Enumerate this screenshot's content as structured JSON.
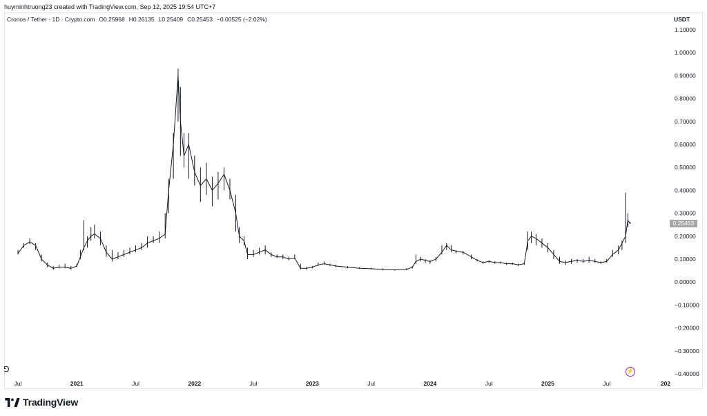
{
  "header": {
    "attribution": "huyminhtruong23 created with TradingView.com, Sep 12, 2025 19:54 UTC+7"
  },
  "legend": {
    "symbol": "Cronos / Tether · 1D · Crypto.com",
    "open": "O0.25968",
    "high": "H0.26135",
    "low": "L0.25409",
    "close": "C0.25453",
    "change": "−0.00525 (−2.02%)"
  },
  "price_label": "0.25453",
  "brand": "TradingView",
  "bolt_icon": "⚡",
  "scroll_icon": "⅁",
  "colors": {
    "candle": "#131722",
    "price_tag": "#a6a6a6",
    "accent": "#9c27b0"
  },
  "chart_data": {
    "type": "line",
    "title": "",
    "unit": "USDT",
    "ylim": [
      -0.4,
      1.1
    ],
    "yticks": [
      "1.10000",
      "1.00000",
      "0.90000",
      "0.80000",
      "0.70000",
      "0.60000",
      "0.50000",
      "0.40000",
      "0.30000",
      "0.20000",
      "0.10000",
      "0.00000",
      "−0.10000",
      "−0.20000",
      "−0.30000",
      "−0.40000"
    ],
    "ytick_values": [
      1.1,
      1.0,
      0.9,
      0.8,
      0.7,
      0.6,
      0.5,
      0.4,
      0.3,
      0.2,
      0.1,
      0.0,
      -0.1,
      -0.2,
      -0.3,
      -0.4
    ],
    "xticks": [
      {
        "label": "Jul",
        "t": 2020.5,
        "bold": false
      },
      {
        "label": "2021",
        "t": 2021.0,
        "bold": true
      },
      {
        "label": "Jul",
        "t": 2021.5,
        "bold": false
      },
      {
        "label": "2022",
        "t": 2022.0,
        "bold": true
      },
      {
        "label": "Jul",
        "t": 2022.5,
        "bold": false
      },
      {
        "label": "2023",
        "t": 2023.0,
        "bold": true
      },
      {
        "label": "Jul",
        "t": 2023.5,
        "bold": false
      },
      {
        "label": "2024",
        "t": 2024.0,
        "bold": true
      },
      {
        "label": "Jul",
        "t": 2024.5,
        "bold": false
      },
      {
        "label": "2025",
        "t": 2025.0,
        "bold": true
      },
      {
        "label": "Jul",
        "t": 2025.5,
        "bold": false
      },
      {
        "label": "202",
        "t": 2026.0,
        "bold": true
      }
    ],
    "series": [
      {
        "values": [
          [
            2020.5,
            0.125,
            0.14,
            0.12
          ],
          [
            2020.55,
            0.16,
            0.17,
            0.15
          ],
          [
            2020.6,
            0.175,
            0.19,
            0.165
          ],
          [
            2020.65,
            0.16,
            0.17,
            0.14
          ],
          [
            2020.7,
            0.1,
            0.12,
            0.09
          ],
          [
            2020.75,
            0.075,
            0.085,
            0.065
          ],
          [
            2020.8,
            0.06,
            0.07,
            0.055
          ],
          [
            2020.85,
            0.065,
            0.075,
            0.06
          ],
          [
            2020.9,
            0.065,
            0.08,
            0.06
          ],
          [
            2020.95,
            0.06,
            0.07,
            0.055
          ],
          [
            2021.0,
            0.07,
            0.08,
            0.065
          ],
          [
            2021.03,
            0.11,
            0.14,
            0.1
          ],
          [
            2021.06,
            0.15,
            0.27,
            0.14
          ],
          [
            2021.09,
            0.18,
            0.2,
            0.15
          ],
          [
            2021.12,
            0.2,
            0.24,
            0.18
          ],
          [
            2021.15,
            0.21,
            0.25,
            0.19
          ],
          [
            2021.2,
            0.19,
            0.22,
            0.16
          ],
          [
            2021.25,
            0.13,
            0.16,
            0.11
          ],
          [
            2021.3,
            0.1,
            0.14,
            0.09
          ],
          [
            2021.35,
            0.11,
            0.13,
            0.1
          ],
          [
            2021.4,
            0.12,
            0.14,
            0.11
          ],
          [
            2021.45,
            0.13,
            0.15,
            0.12
          ],
          [
            2021.5,
            0.14,
            0.16,
            0.13
          ],
          [
            2021.55,
            0.15,
            0.17,
            0.14
          ],
          [
            2021.6,
            0.17,
            0.2,
            0.15
          ],
          [
            2021.65,
            0.18,
            0.2,
            0.17
          ],
          [
            2021.7,
            0.19,
            0.22,
            0.17
          ],
          [
            2021.75,
            0.21,
            0.3,
            0.19
          ],
          [
            2021.78,
            0.4,
            0.45,
            0.3
          ],
          [
            2021.82,
            0.6,
            0.65,
            0.45
          ],
          [
            2021.86,
            0.9,
            0.93,
            0.7
          ],
          [
            2021.88,
            0.7,
            0.85,
            0.55
          ],
          [
            2021.91,
            0.55,
            0.65,
            0.5
          ],
          [
            2021.95,
            0.6,
            0.65,
            0.45
          ],
          [
            2022.0,
            0.48,
            0.55,
            0.42
          ],
          [
            2022.05,
            0.42,
            0.5,
            0.35
          ],
          [
            2022.1,
            0.45,
            0.52,
            0.38
          ],
          [
            2022.15,
            0.4,
            0.46,
            0.33
          ],
          [
            2022.2,
            0.43,
            0.48,
            0.36
          ],
          [
            2022.25,
            0.47,
            0.5,
            0.4
          ],
          [
            2022.3,
            0.4,
            0.45,
            0.36
          ],
          [
            2022.35,
            0.3,
            0.38,
            0.22
          ],
          [
            2022.38,
            0.2,
            0.24,
            0.17
          ],
          [
            2022.42,
            0.18,
            0.2,
            0.16
          ],
          [
            2022.45,
            0.12,
            0.15,
            0.1
          ],
          [
            2022.5,
            0.12,
            0.14,
            0.11
          ],
          [
            2022.55,
            0.13,
            0.15,
            0.12
          ],
          [
            2022.6,
            0.14,
            0.16,
            0.12
          ],
          [
            2022.65,
            0.12,
            0.13,
            0.11
          ],
          [
            2022.7,
            0.11,
            0.12,
            0.105
          ],
          [
            2022.75,
            0.11,
            0.12,
            0.1
          ],
          [
            2022.8,
            0.1,
            0.11,
            0.095
          ],
          [
            2022.85,
            0.105,
            0.12,
            0.1
          ],
          [
            2022.9,
            0.06,
            0.08,
            0.055
          ],
          [
            2022.95,
            0.06,
            0.065,
            0.055
          ],
          [
            2023.0,
            0.065,
            0.07,
            0.06
          ],
          [
            2023.05,
            0.075,
            0.085,
            0.07
          ],
          [
            2023.1,
            0.08,
            0.09,
            0.075
          ],
          [
            2023.15,
            0.075,
            0.08,
            0.07
          ],
          [
            2023.2,
            0.07,
            0.075,
            0.065
          ],
          [
            2023.3,
            0.065,
            0.07,
            0.06
          ],
          [
            2023.4,
            0.06,
            0.065,
            0.058
          ],
          [
            2023.5,
            0.058,
            0.062,
            0.055
          ],
          [
            2023.6,
            0.055,
            0.06,
            0.052
          ],
          [
            2023.7,
            0.053,
            0.056,
            0.05
          ],
          [
            2023.8,
            0.055,
            0.06,
            0.052
          ],
          [
            2023.85,
            0.065,
            0.07,
            0.06
          ],
          [
            2023.88,
            0.09,
            0.12,
            0.08
          ],
          [
            2023.92,
            0.1,
            0.11,
            0.09
          ],
          [
            2023.96,
            0.095,
            0.1,
            0.085
          ],
          [
            2024.0,
            0.09,
            0.095,
            0.08
          ],
          [
            2024.05,
            0.1,
            0.11,
            0.09
          ],
          [
            2024.1,
            0.13,
            0.16,
            0.12
          ],
          [
            2024.14,
            0.16,
            0.17,
            0.14
          ],
          [
            2024.18,
            0.14,
            0.16,
            0.13
          ],
          [
            2024.22,
            0.135,
            0.14,
            0.125
          ],
          [
            2024.28,
            0.13,
            0.135,
            0.12
          ],
          [
            2024.35,
            0.11,
            0.12,
            0.1
          ],
          [
            2024.4,
            0.095,
            0.1,
            0.09
          ],
          [
            2024.45,
            0.085,
            0.09,
            0.08
          ],
          [
            2024.5,
            0.09,
            0.095,
            0.085
          ],
          [
            2024.55,
            0.085,
            0.09,
            0.08
          ],
          [
            2024.6,
            0.085,
            0.09,
            0.08
          ],
          [
            2024.65,
            0.08,
            0.085,
            0.075
          ],
          [
            2024.7,
            0.08,
            0.085,
            0.075
          ],
          [
            2024.75,
            0.075,
            0.08,
            0.07
          ],
          [
            2024.8,
            0.08,
            0.085,
            0.075
          ],
          [
            2024.83,
            0.18,
            0.22,
            0.14
          ],
          [
            2024.86,
            0.2,
            0.22,
            0.17
          ],
          [
            2024.9,
            0.19,
            0.21,
            0.16
          ],
          [
            2024.95,
            0.17,
            0.19,
            0.15
          ],
          [
            2025.0,
            0.15,
            0.17,
            0.13
          ],
          [
            2025.05,
            0.12,
            0.14,
            0.1
          ],
          [
            2025.1,
            0.09,
            0.11,
            0.08
          ],
          [
            2025.15,
            0.085,
            0.095,
            0.075
          ],
          [
            2025.2,
            0.09,
            0.1,
            0.08
          ],
          [
            2025.25,
            0.095,
            0.1,
            0.085
          ],
          [
            2025.3,
            0.09,
            0.1,
            0.085
          ],
          [
            2025.35,
            0.095,
            0.11,
            0.085
          ],
          [
            2025.4,
            0.09,
            0.1,
            0.085
          ],
          [
            2025.45,
            0.085,
            0.09,
            0.08
          ],
          [
            2025.5,
            0.09,
            0.1,
            0.085
          ],
          [
            2025.55,
            0.12,
            0.14,
            0.11
          ],
          [
            2025.6,
            0.14,
            0.16,
            0.12
          ],
          [
            2025.63,
            0.17,
            0.18,
            0.14
          ],
          [
            2025.66,
            0.2,
            0.39,
            0.17
          ],
          [
            2025.68,
            0.27,
            0.3,
            0.24
          ],
          [
            2025.7,
            0.25453,
            0.26135,
            0.25409
          ]
        ]
      }
    ]
  }
}
